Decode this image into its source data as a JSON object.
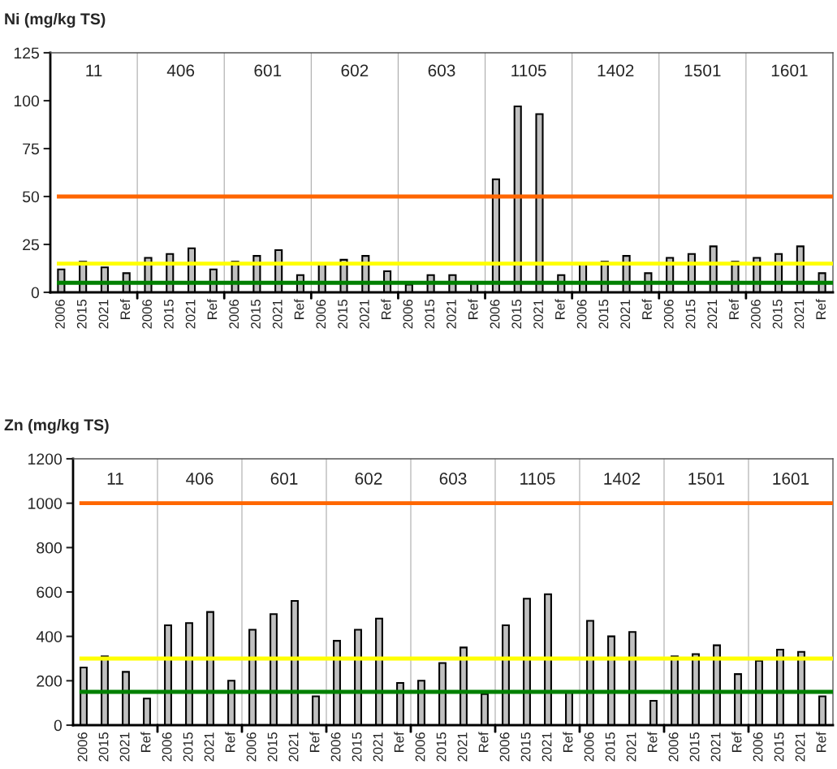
{
  "chart_data": [
    {
      "type": "bar",
      "title": "Ni (mg/kg TS)",
      "categories": [
        "2006",
        "2015",
        "2021",
        "Ref",
        "2006",
        "2015",
        "2021",
        "Ref",
        "2006",
        "2015",
        "2021",
        "Ref",
        "2006",
        "2015",
        "2021",
        "Ref",
        "2006",
        "2015",
        "2021",
        "Ref",
        "2006",
        "2015",
        "2021",
        "Ref",
        "2006",
        "2015",
        "2021",
        "Ref",
        "2006",
        "2015",
        "2021",
        "Ref",
        "2006",
        "2015",
        "2021",
        "Ref"
      ],
      "values": [
        12,
        16,
        13,
        10,
        18,
        20,
        23,
        12,
        16,
        19,
        22,
        9,
        15,
        17,
        19,
        11,
        4,
        9,
        9,
        5,
        59,
        97,
        93,
        9,
        15,
        16,
        19,
        10,
        18,
        20,
        24,
        16,
        18,
        20,
        24,
        10
      ],
      "color": "#c0c0c0",
      "ylim": [
        0,
        125
      ],
      "yticks": [
        0,
        25,
        50,
        75,
        100,
        125
      ],
      "annotations": [
        "11",
        "406",
        "601",
        "602",
        "603",
        "1105",
        "1402",
        "1501",
        "1601"
      ],
      "ref_lines": [
        {
          "axis": "y",
          "value": 50,
          "color": "#ff6600"
        },
        {
          "axis": "y",
          "value": 15,
          "color": "#ffff00"
        },
        {
          "axis": "y",
          "value": 5,
          "color": "#008000"
        }
      ],
      "grid": false,
      "legend": false
    },
    {
      "type": "bar",
      "title": "Zn (mg/kg TS)",
      "categories": [
        "2006",
        "2015",
        "2021",
        "Ref",
        "2006",
        "2015",
        "2021",
        "Ref",
        "2006",
        "2015",
        "2021",
        "Ref",
        "2006",
        "2015",
        "2021",
        "Ref",
        "2006",
        "2015",
        "2021",
        "Ref",
        "2006",
        "2015",
        "2021",
        "Ref",
        "2006",
        "2015",
        "2021",
        "Ref",
        "2006",
        "2015",
        "2021",
        "Ref",
        "2006",
        "2015",
        "2021",
        "Ref"
      ],
      "values": [
        260,
        310,
        240,
        120,
        450,
        460,
        510,
        200,
        430,
        500,
        560,
        130,
        380,
        430,
        480,
        190,
        200,
        280,
        350,
        140,
        450,
        570,
        590,
        150,
        470,
        400,
        420,
        110,
        310,
        320,
        360,
        230,
        290,
        340,
        330,
        130
      ],
      "color": "#c0c0c0",
      "ylim": [
        0,
        1200
      ],
      "yticks": [
        0,
        200,
        400,
        600,
        800,
        1000,
        1200
      ],
      "annotations": [
        "11",
        "406",
        "601",
        "602",
        "603",
        "1105",
        "1402",
        "1501",
        "1601"
      ],
      "ref_lines": [
        {
          "axis": "y",
          "value": 1000,
          "color": "#ff6600"
        },
        {
          "axis": "y",
          "value": 300,
          "color": "#ffff00"
        },
        {
          "axis": "y",
          "value": 150,
          "color": "#008000"
        }
      ],
      "grid": false,
      "legend": false
    }
  ]
}
